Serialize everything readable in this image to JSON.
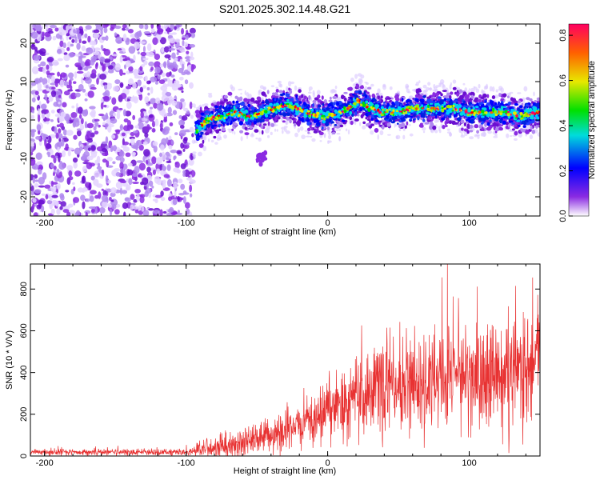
{
  "title": "S201.2025.302.14.48.G21",
  "chart_data": [
    {
      "type": "heatmap",
      "panel": "spectrogram",
      "xlabel": "Height of straight line (km)",
      "ylabel": "Frequency (Hz)",
      "xlim": [
        -210,
        150
      ],
      "ylim": [
        -25,
        25
      ],
      "xticks": [
        -200,
        -100,
        0,
        100
      ],
      "yticks": [
        -20,
        -10,
        0,
        10,
        20
      ],
      "colorbar": {
        "label": "Normalized spectral amplitude",
        "range": [
          0.0,
          0.85
        ],
        "ticks": [
          0.0,
          0.2,
          0.4,
          0.6,
          0.8
        ]
      },
      "ridge": [
        {
          "x": -93,
          "y": -3
        },
        {
          "x": -85,
          "y": 0
        },
        {
          "x": -75,
          "y": 1
        },
        {
          "x": -65,
          "y": 2
        },
        {
          "x": -55,
          "y": 1
        },
        {
          "x": -45,
          "y": 2
        },
        {
          "x": -38,
          "y": 3
        },
        {
          "x": -30,
          "y": 4
        },
        {
          "x": -22,
          "y": 3
        },
        {
          "x": -15,
          "y": 2
        },
        {
          "x": -8,
          "y": 1
        },
        {
          "x": 0,
          "y": 1
        },
        {
          "x": 8,
          "y": 2
        },
        {
          "x": 15,
          "y": 3
        },
        {
          "x": 22,
          "y": 5
        },
        {
          "x": 30,
          "y": 3
        },
        {
          "x": 40,
          "y": 2
        },
        {
          "x": 50,
          "y": 2
        },
        {
          "x": 60,
          "y": 3
        },
        {
          "x": 70,
          "y": 3
        },
        {
          "x": 80,
          "y": 3
        },
        {
          "x": 90,
          "y": 3
        },
        {
          "x": 100,
          "y": 2
        },
        {
          "x": 115,
          "y": 2
        },
        {
          "x": 125,
          "y": 2
        },
        {
          "x": 135,
          "y": 1
        },
        {
          "x": 150,
          "y": 2
        }
      ],
      "features": [
        {
          "name": "noise-region",
          "x_range": [
            -210,
            -95
          ]
        },
        {
          "name": "side-lobe",
          "x": -47,
          "y": -10
        }
      ]
    },
    {
      "type": "line",
      "panel": "snr",
      "xlabel": "Height of straight line (km)",
      "ylabel": "SNR (10 * V/V)",
      "xlim": [
        -210,
        150
      ],
      "ylim": [
        0,
        920
      ],
      "xticks": [
        -200,
        -100,
        0,
        100
      ],
      "yticks": [
        0,
        200,
        400,
        600,
        800
      ],
      "color": "#e83232",
      "envelope": [
        {
          "x": -210,
          "mean": 18,
          "spread": 12
        },
        {
          "x": -100,
          "mean": 18,
          "spread": 12
        },
        {
          "x": -82,
          "mean": 40,
          "spread": 40
        },
        {
          "x": -60,
          "mean": 60,
          "spread": 50
        },
        {
          "x": -40,
          "mean": 100,
          "spread": 70
        },
        {
          "x": -20,
          "mean": 150,
          "spread": 80
        },
        {
          "x": 0,
          "mean": 210,
          "spread": 110
        },
        {
          "x": 20,
          "mean": 280,
          "spread": 150
        },
        {
          "x": 40,
          "mean": 340,
          "spread": 180
        },
        {
          "x": 60,
          "mean": 360,
          "spread": 190
        },
        {
          "x": 80,
          "mean": 370,
          "spread": 190
        },
        {
          "x": 100,
          "mean": 380,
          "spread": 190
        },
        {
          "x": 120,
          "mean": 390,
          "spread": 210
        },
        {
          "x": 140,
          "mean": 400,
          "spread": 230
        },
        {
          "x": 150,
          "mean": 410,
          "spread": 240
        }
      ]
    }
  ]
}
